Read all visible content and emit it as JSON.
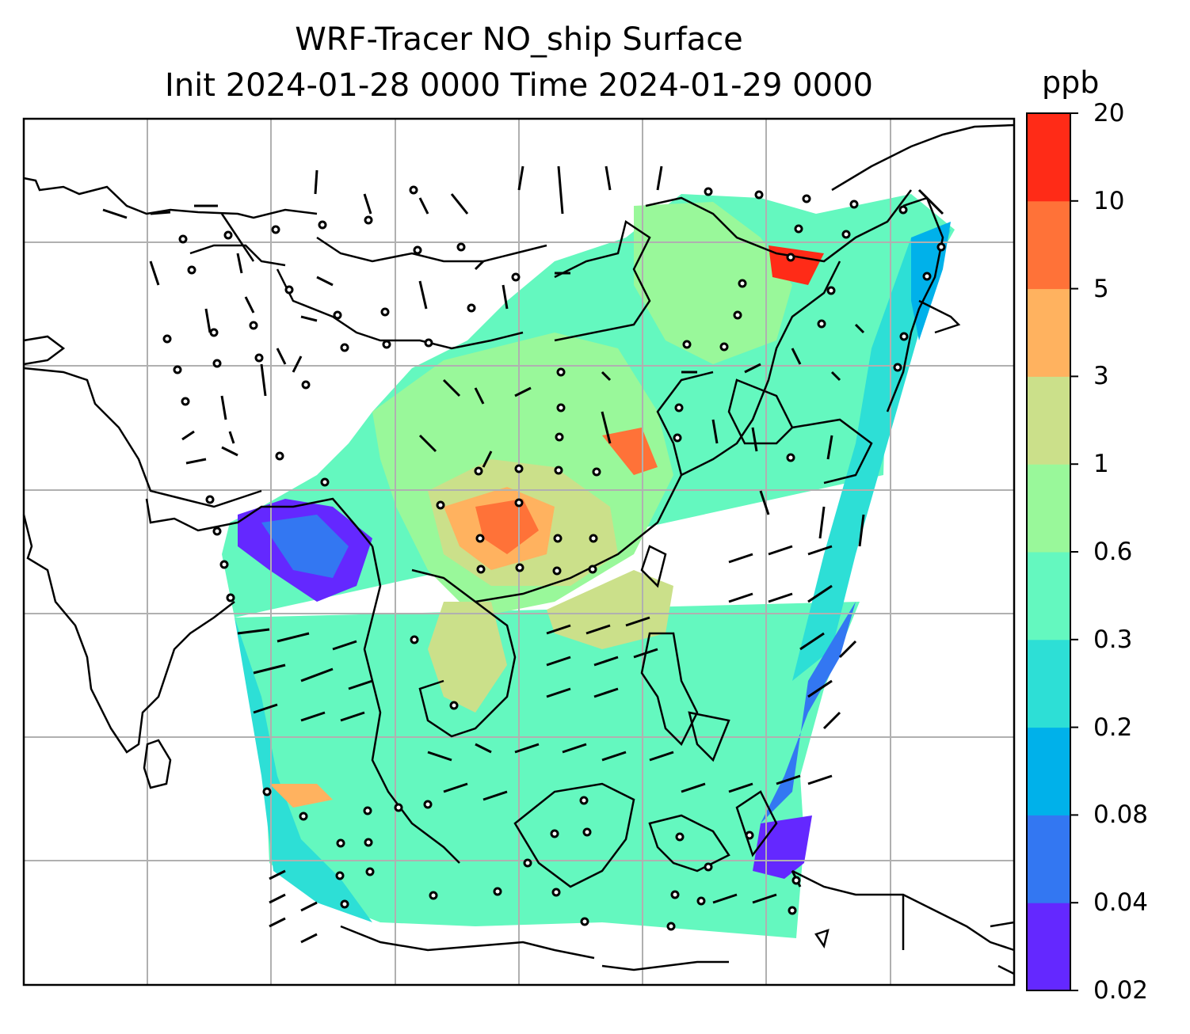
{
  "title_line1": "WRF-Tracer NO_ship Surface",
  "title_line2": "Init 2024-01-28 0000 Time 2024-01-29 0000",
  "colorbar": {
    "unit": "ppb",
    "ticks": [
      "0.02",
      "0.04",
      "0.08",
      "0.2",
      "0.3",
      "0.6",
      "1",
      "3",
      "5",
      "10",
      "20"
    ],
    "colors": [
      "#6428ff",
      "#3377f2",
      "#00b1ea",
      "#2ddfd6",
      "#64f8bf",
      "#99f89a",
      "#cbe08a",
      "#ffb25f",
      "#ff7238",
      "#ff2b17"
    ]
  },
  "map": {
    "field": "NO_ship surface concentration",
    "gridlines": true,
    "wind_barbs": true,
    "coastlines": true
  }
}
